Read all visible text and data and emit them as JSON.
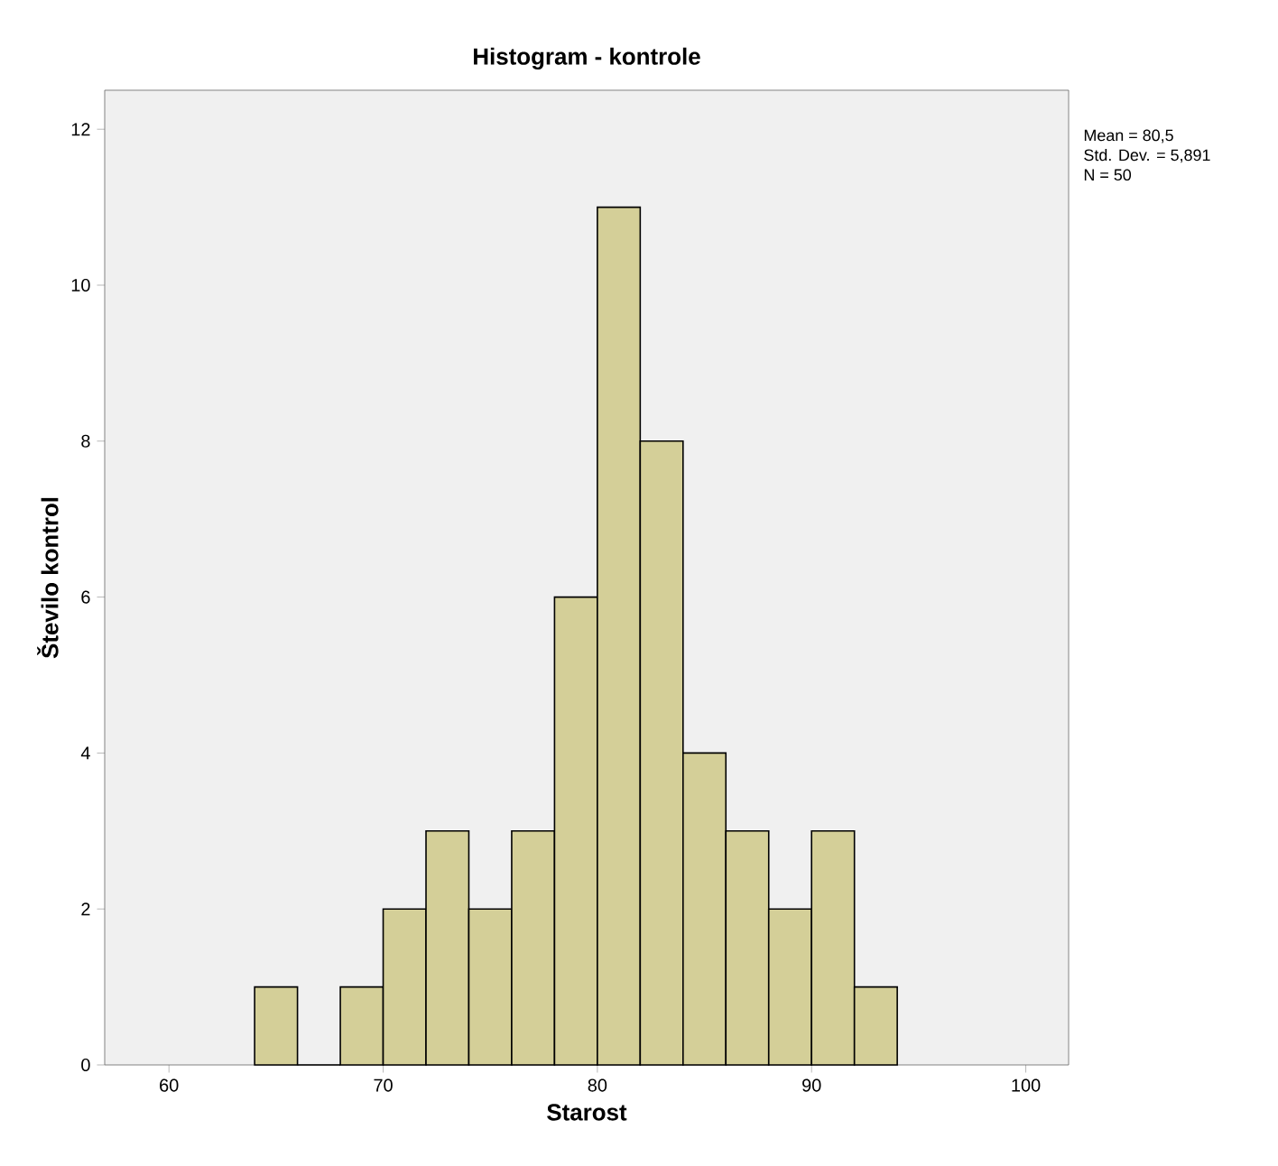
{
  "chart_data": {
    "type": "histogram",
    "title": "Histogram - kontrole",
    "xlabel": "Starost",
    "ylabel": "Število kontrol",
    "bins": [
      64,
      66,
      68,
      70,
      72,
      74,
      76,
      78,
      80,
      82,
      84,
      86,
      88,
      90,
      92,
      94
    ],
    "values": [
      1,
      0,
      1,
      2,
      3,
      2,
      3,
      6,
      11,
      8,
      4,
      3,
      2,
      3,
      1
    ],
    "color": "#d4cf98",
    "xlim": [
      57,
      102
    ],
    "xticks": [
      60,
      70,
      80,
      90,
      100
    ],
    "ylim": [
      0,
      12.5
    ],
    "yticks": [
      0,
      2,
      4,
      6,
      8,
      10,
      12
    ],
    "annotations": [
      "Mean = 80,5",
      "Std. Dev. = 5,891",
      "N = 50"
    ],
    "grid": false
  }
}
